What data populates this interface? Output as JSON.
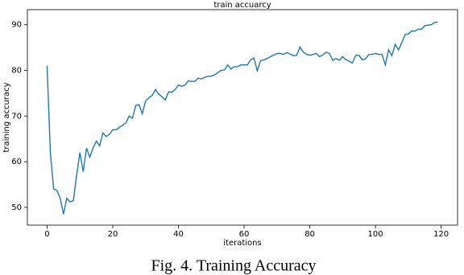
{
  "chart_data": {
    "type": "line",
    "title": "train accuarcy",
    "x_label": "iterations",
    "y_label": "training accuracy",
    "x": [
      0,
      1,
      2,
      3,
      4,
      5,
      6,
      7,
      8,
      9,
      10,
      11,
      12,
      13,
      14,
      15,
      16,
      17,
      18,
      19,
      20,
      21,
      22,
      23,
      24,
      25,
      26,
      27,
      28,
      29,
      30,
      31,
      32,
      33,
      34,
      35,
      36,
      37,
      38,
      39,
      40,
      41,
      42,
      43,
      44,
      45,
      46,
      47,
      48,
      49,
      50,
      51,
      52,
      53,
      54,
      55,
      56,
      57,
      58,
      59,
      60,
      61,
      62,
      63,
      64,
      65,
      66,
      67,
      68,
      69,
      70,
      71,
      72,
      73,
      74,
      75,
      76,
      77,
      78,
      79,
      80,
      81,
      82,
      83,
      84,
      85,
      86,
      87,
      88,
      89,
      90,
      91,
      92,
      93,
      94,
      95,
      96,
      97,
      98,
      99,
      100,
      101,
      102,
      103,
      104,
      105,
      106,
      107,
      108,
      109,
      110,
      111,
      112,
      113,
      114,
      115,
      116,
      117,
      118,
      119
    ],
    "series": [
      {
        "color": "#1f77b4",
        "values": [
          81,
          62,
          54,
          53.7,
          52,
          48.5,
          52,
          51.2,
          51.5,
          57,
          62,
          57.8,
          63,
          61,
          63,
          64.5,
          63.5,
          66.3,
          65.5,
          66,
          67,
          67,
          67.5,
          68,
          68.5,
          70,
          69.5,
          72.3,
          72.5,
          70.5,
          73.3,
          74,
          74.5,
          75.8,
          74.8,
          74.2,
          73.5,
          75.3,
          75.2,
          75.8,
          76.8,
          76.5,
          76.8,
          77.7,
          77.6,
          77.6,
          78.3,
          78.1,
          78.5,
          78.7,
          78.7,
          79,
          79.5,
          80,
          80.1,
          81.2,
          80.3,
          80.8,
          80.8,
          81.2,
          81.2,
          81.2,
          82.3,
          82.7,
          79.9,
          82.1,
          82.3,
          82.6,
          83,
          83.3,
          83.7,
          83.7,
          83.5,
          83.9,
          83.6,
          83.2,
          83.3,
          85.1,
          84,
          83.5,
          83.3,
          83.5,
          83.7,
          83,
          83.4,
          84,
          83.7,
          82.2,
          82.6,
          82.2,
          83,
          82.3,
          82,
          81.6,
          83.3,
          83.3,
          82.3,
          82.5,
          83.5,
          83.5,
          83.7,
          83.5,
          83.5,
          81.2,
          84.5,
          83.2,
          85.7,
          84.5,
          86,
          87.8,
          88,
          88.6,
          88.6,
          89,
          89,
          89.8,
          89.9,
          90,
          90.5,
          90.6
        ]
      }
    ],
    "xlim": [
      -6,
      125
    ],
    "ylim": [
      46.1,
      93.3
    ],
    "xticks": [
      0,
      20,
      40,
      60,
      80,
      100,
      120
    ],
    "yticks": [
      50,
      60,
      70,
      80,
      90
    ],
    "grid": false
  },
  "caption": "Fig. 4. Training Accuracy"
}
